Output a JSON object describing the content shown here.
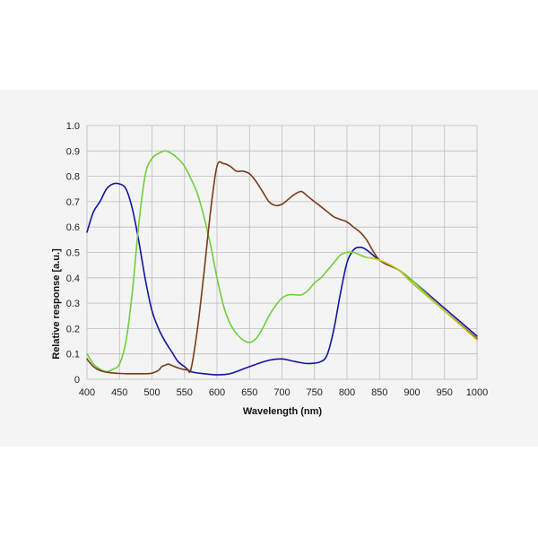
{
  "chart_data": {
    "type": "line",
    "title": "",
    "xlabel": "Wavelength (nm)",
    "ylabel": "Relative response [a.u.]",
    "xlim": [
      400,
      1000
    ],
    "ylim": [
      0,
      1.0
    ],
    "x_ticks": [
      400,
      450,
      500,
      550,
      600,
      650,
      700,
      750,
      800,
      850,
      900,
      950,
      1000
    ],
    "y_ticks": [
      0,
      0.1,
      0.2,
      0.3,
      0.4,
      0.5,
      0.6,
      0.7,
      0.8,
      0.9,
      1.0
    ],
    "x_tick_labels": [
      "400",
      "450",
      "500",
      "550",
      "600",
      "650",
      "700",
      "750",
      "800",
      "850",
      "900",
      "950",
      "1000"
    ],
    "y_tick_labels": [
      "0",
      "0.1",
      "0.2",
      "0.3",
      "0.4",
      "0.5",
      "0.6",
      "0.7",
      "0.8",
      "0.9",
      "1.0"
    ],
    "grid": true,
    "legend": "none",
    "series": [
      {
        "color": "#1414a0",
        "x": [
          400,
          410,
          420,
          430,
          440,
          450,
          460,
          470,
          480,
          490,
          500,
          510,
          520,
          530,
          540,
          550,
          560,
          580,
          600,
          620,
          650,
          680,
          700,
          720,
          740,
          760,
          770,
          780,
          790,
          800,
          810,
          820,
          830,
          850,
          880,
          900,
          950,
          1000
        ],
        "y": [
          0.58,
          0.66,
          0.7,
          0.75,
          0.77,
          0.77,
          0.75,
          0.67,
          0.54,
          0.39,
          0.27,
          0.2,
          0.15,
          0.11,
          0.07,
          0.05,
          0.03,
          0.022,
          0.018,
          0.022,
          0.05,
          0.075,
          0.08,
          0.07,
          0.062,
          0.07,
          0.1,
          0.2,
          0.34,
          0.46,
          0.51,
          0.52,
          0.51,
          0.47,
          0.43,
          0.39,
          0.28,
          0.17
        ]
      },
      {
        "color": "#6ccf3c",
        "x": [
          400,
          410,
          420,
          430,
          440,
          450,
          460,
          470,
          480,
          490,
          500,
          510,
          520,
          530,
          540,
          550,
          560,
          570,
          580,
          590,
          600,
          610,
          620,
          630,
          640,
          650,
          660,
          670,
          680,
          690,
          700,
          710,
          720,
          730,
          740,
          750,
          760,
          770,
          780,
          790,
          800,
          810,
          820,
          830,
          850,
          880,
          900,
          950,
          1000
        ],
        "y": [
          0.1,
          0.06,
          0.04,
          0.03,
          0.04,
          0.06,
          0.15,
          0.35,
          0.62,
          0.81,
          0.87,
          0.89,
          0.9,
          0.89,
          0.87,
          0.84,
          0.79,
          0.73,
          0.64,
          0.53,
          0.4,
          0.29,
          0.22,
          0.18,
          0.155,
          0.145,
          0.16,
          0.2,
          0.25,
          0.29,
          0.32,
          0.333,
          0.333,
          0.333,
          0.35,
          0.38,
          0.4,
          0.43,
          0.46,
          0.49,
          0.5,
          0.5,
          0.49,
          0.48,
          0.47,
          0.43,
          0.39,
          0.27,
          0.16
        ]
      },
      {
        "color": "#7a3b18",
        "x": [
          400,
          410,
          420,
          430,
          440,
          450,
          460,
          470,
          480,
          490,
          500,
          510,
          515,
          520,
          525,
          530,
          540,
          550,
          555,
          560,
          570,
          580,
          590,
          600,
          610,
          620,
          630,
          640,
          650,
          660,
          670,
          680,
          690,
          700,
          710,
          720,
          730,
          740,
          750,
          760,
          770,
          780,
          790,
          800,
          810,
          820,
          830,
          850,
          880,
          900,
          950,
          1000
        ],
        "y": [
          0.08,
          0.05,
          0.035,
          0.028,
          0.025,
          0.023,
          0.022,
          0.022,
          0.022,
          0.022,
          0.024,
          0.035,
          0.05,
          0.055,
          0.06,
          0.055,
          0.045,
          0.038,
          0.037,
          0.04,
          0.2,
          0.42,
          0.66,
          0.84,
          0.85,
          0.84,
          0.82,
          0.82,
          0.81,
          0.78,
          0.74,
          0.7,
          0.685,
          0.69,
          0.71,
          0.73,
          0.74,
          0.72,
          0.7,
          0.68,
          0.66,
          0.64,
          0.63,
          0.62,
          0.6,
          0.58,
          0.55,
          0.47,
          0.43,
          0.38,
          0.27,
          0.16
        ]
      },
      {
        "color": "#c8c41e",
        "x": [
          830,
          850,
          880,
          900,
          950,
          1000
        ],
        "y": [
          0.48,
          0.47,
          0.43,
          0.38,
          0.27,
          0.155
        ]
      }
    ]
  }
}
